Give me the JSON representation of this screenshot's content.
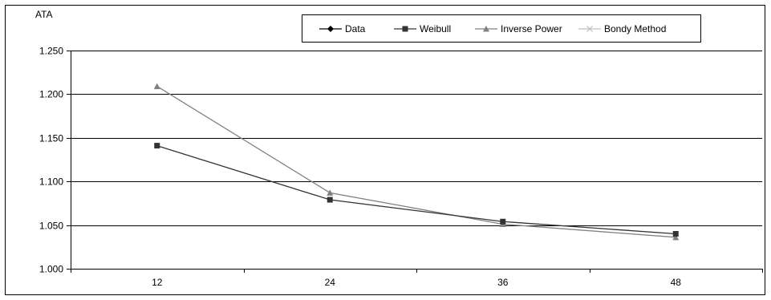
{
  "chart_data": {
    "type": "line",
    "ylabel": "ATA",
    "x": [
      12,
      24,
      36,
      48
    ],
    "ylim": [
      1.0,
      1.25
    ],
    "yticks": [
      "1.000",
      "1.050",
      "1.100",
      "1.150",
      "1.200",
      "1.250"
    ],
    "xticks": [
      "12",
      "24",
      "36",
      "48"
    ],
    "grid": "horizontal",
    "legend_position": "top-right",
    "series": [
      {
        "name": "Data",
        "marker": "diamond",
        "color": "#000000",
        "values": [
          null,
          null,
          null,
          null
        ]
      },
      {
        "name": "Weibull",
        "marker": "square",
        "color": "#333333",
        "values": [
          1.141,
          1.079,
          1.054,
          1.04
        ]
      },
      {
        "name": "Inverse Power",
        "marker": "triangle",
        "color": "#808080",
        "values": [
          1.209,
          1.087,
          1.051,
          1.036
        ]
      },
      {
        "name": "Bondy Method",
        "marker": "x",
        "color": "#bfbfbf",
        "values": [
          null,
          null,
          null,
          null
        ]
      }
    ]
  }
}
